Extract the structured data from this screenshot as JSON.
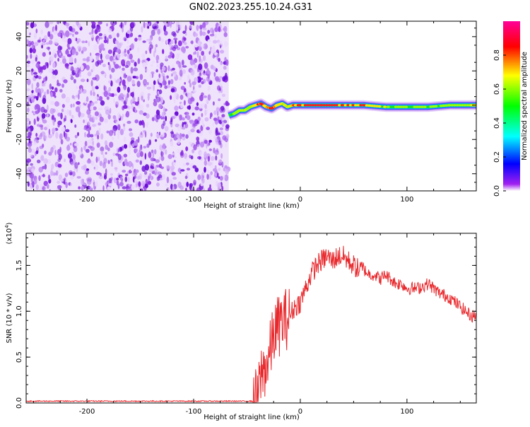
{
  "figure": {
    "title": "GN02.2023.255.10.24.G31"
  },
  "chart_data": [
    {
      "id": "spectrogram",
      "type": "heatmap",
      "title": "GN02.2023.255.10.24.G31",
      "xlabel": "Height of straight line (km)",
      "ylabel": "Frequency (Hz)",
      "xlim": [
        -257,
        165
      ],
      "ylim": [
        -50,
        49
      ],
      "xticks": [
        -200,
        -100,
        0,
        100
      ],
      "yticks": [
        -40,
        -20,
        0,
        20,
        40
      ],
      "noise_region_x": [
        -257,
        -67
      ],
      "signal_ridge": {
        "x": [
          -67,
          -62,
          -57,
          -52,
          -47,
          -42,
          -37,
          -32,
          -27,
          -22,
          -17,
          -12,
          -7,
          0,
          20,
          40,
          60,
          80,
          100,
          120,
          140,
          160,
          165
        ],
        "y": [
          -6,
          -5,
          -3,
          -3,
          -1,
          0,
          1,
          -1,
          -2,
          0,
          1,
          -1,
          0,
          0,
          0,
          0,
          0,
          -1,
          -1,
          -1,
          0,
          0,
          0
        ],
        "amplitude": [
          0.35,
          0.45,
          0.55,
          0.6,
          0.65,
          0.7,
          0.9,
          0.75,
          0.95,
          0.8,
          0.7,
          0.6,
          0.8,
          0.9,
          0.95,
          0.9,
          0.85,
          0.55,
          0.5,
          0.5,
          0.55,
          0.6,
          0.8
        ]
      },
      "colorbar": {
        "label": "Normalized spectral amplitude",
        "range": [
          0,
          1
        ],
        "ticks": [
          "0.0",
          "0.2",
          "0.4",
          "0.6",
          "0.8"
        ],
        "colors": [
          "#ffffff",
          "#a020f0",
          "#0000ff",
          "#00ffff",
          "#00ff00",
          "#ffff00",
          "#ff0000",
          "#ff00aa"
        ]
      }
    },
    {
      "id": "snr",
      "type": "line",
      "xlabel": "Height of straight line (km)",
      "ylabel": "SNR (10 * v/v)",
      "yscale_label": "(x10",
      "yscale_exp": "4",
      "yscale_close": ")",
      "xlim": [
        -257,
        165
      ],
      "ylim": [
        0,
        1.85
      ],
      "xticks": [
        -200,
        -100,
        0,
        100
      ],
      "yticks": [
        "0.0",
        "0.5",
        "1.0",
        "1.5"
      ],
      "color": "#e8282c",
      "series": [
        {
          "x": [
            -257,
            -200,
            -100,
            -50,
            -45,
            -40,
            -37,
            -35,
            -30,
            -25,
            -20,
            -15,
            -10,
            -5,
            0,
            5,
            10,
            15,
            20,
            25,
            30,
            35,
            40,
            45,
            50,
            55,
            60,
            65,
            70,
            75,
            80,
            85,
            90,
            95,
            100,
            110,
            120,
            130,
            140,
            150,
            155,
            160,
            165
          ],
          "y": [
            0.02,
            0.02,
            0.02,
            0.02,
            0.02,
            0.05,
            0.3,
            0.35,
            0.45,
            0.75,
            0.85,
            0.9,
            0.95,
            1.05,
            1.1,
            1.25,
            1.4,
            1.5,
            1.55,
            1.6,
            1.55,
            1.6,
            1.6,
            1.55,
            1.5,
            1.45,
            1.45,
            1.4,
            1.4,
            1.35,
            1.4,
            1.35,
            1.3,
            1.3,
            1.25,
            1.25,
            1.3,
            1.2,
            1.15,
            1.05,
            1.0,
            0.95,
            0.95
          ]
        }
      ]
    }
  ]
}
